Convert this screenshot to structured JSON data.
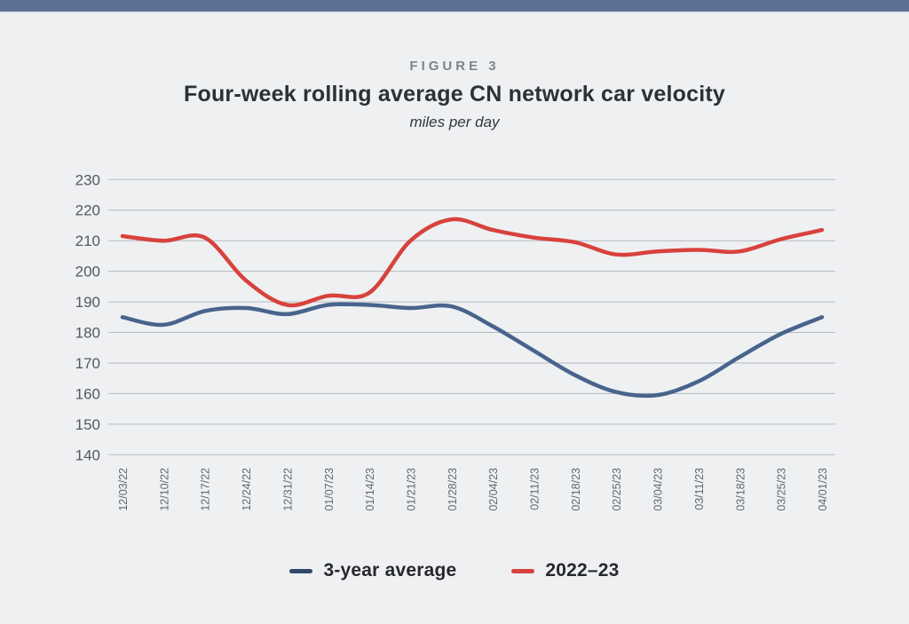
{
  "page": {
    "background_color": "#eef0f2",
    "topbar_color": "#5b7094"
  },
  "header": {
    "figure_label": "FIGURE 3",
    "title": "Four-week rolling average CN network car velocity",
    "subtitle": "miles per day"
  },
  "chart_data": {
    "type": "line",
    "title": "Four-week rolling average CN network car velocity",
    "subtitle": "miles per day",
    "ylabel": "miles per day",
    "xlabel": "",
    "grid": true,
    "legend_position": "bottom",
    "ylim": [
      140,
      230
    ],
    "yticks": [
      230,
      220,
      210,
      200,
      190,
      180,
      170,
      160,
      150,
      140
    ],
    "categories": [
      "12/03/22",
      "12/10/22",
      "12/17/22",
      "12/24/22",
      "12/31/22",
      "01/07/23",
      "01/14/23",
      "01/21/23",
      "01/28/23",
      "02/04/23",
      "02/11/23",
      "02/18/23",
      "02/25/23",
      "03/04/23",
      "03/11/23",
      "03/18/23",
      "03/25/23",
      "04/01/23"
    ],
    "series": [
      {
        "name": "3-year average",
        "color": "#48648c",
        "legend_color": "#31486b",
        "values": [
          185,
          182.5,
          187,
          188,
          186,
          189,
          189,
          188,
          188.5,
          182,
          174,
          166,
          160.5,
          159.5,
          164,
          172,
          179.5,
          185
        ]
      },
      {
        "name": "2022–23",
        "color": "#d8423c",
        "legend_color": "#d8423c",
        "values": [
          211.5,
          210,
          211,
          197,
          189,
          192,
          193,
          210,
          217,
          213.5,
          211,
          209.5,
          205.5,
          206.5,
          207,
          206.5,
          210.5,
          213.5
        ]
      }
    ],
    "grid_color": "#b5b9bf"
  }
}
